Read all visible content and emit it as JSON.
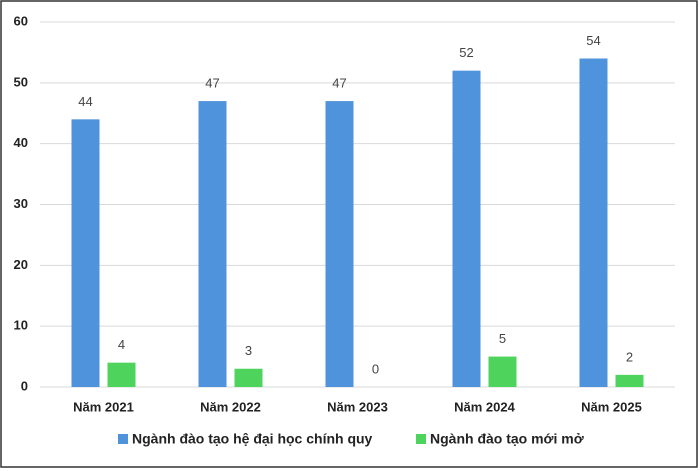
{
  "chart_data": {
    "type": "bar",
    "categories": [
      "Năm 2021",
      "Năm 2022",
      "Năm 2023",
      "Năm 2024",
      "Năm 2025"
    ],
    "series": [
      {
        "name": "Ngành đào tạo hệ đại học chính quy",
        "color": "#4f93dc",
        "values": [
          44,
          47,
          47,
          52,
          54
        ]
      },
      {
        "name": "Ngành đào tạo mới mở",
        "color": "#4ed35c",
        "values": [
          4,
          3,
          0,
          5,
          2
        ]
      }
    ],
    "ylim": [
      0,
      60
    ],
    "yticks": [
      0,
      10,
      20,
      30,
      40,
      50,
      60
    ],
    "grid": true
  }
}
